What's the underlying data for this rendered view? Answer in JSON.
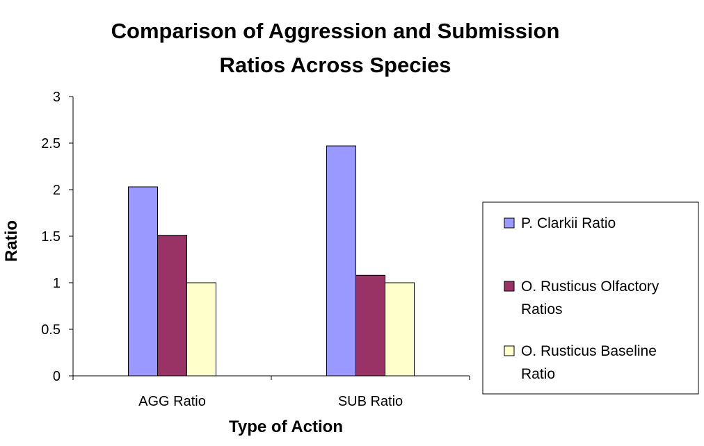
{
  "chart_data": {
    "type": "bar",
    "title_lines": [
      "Comparison of Aggression and Submission",
      "Ratios Across Species"
    ],
    "xlabel": "Type of Action",
    "ylabel": "Ratio",
    "categories": [
      "AGG Ratio",
      "SUB Ratio"
    ],
    "ylim": [
      0,
      3
    ],
    "yticks": [
      0,
      0.5,
      1,
      1.5,
      2,
      2.5,
      3
    ],
    "grid": false,
    "legend_position": "right",
    "series": [
      {
        "name": "P. Clarkii Ratio",
        "legend_lines": [
          "P. Clarkii Ratio"
        ],
        "color": "#9999FF",
        "values": [
          2.03,
          2.47
        ]
      },
      {
        "name": "O. Rusticus Olfactory Ratios",
        "legend_lines": [
          "O. Rusticus Olfactory",
          "Ratios"
        ],
        "color": "#993366",
        "values": [
          1.51,
          1.08
        ]
      },
      {
        "name": "O. Rusticus Baseline Ratio",
        "legend_lines": [
          "O. Rusticus Baseline",
          "Ratio"
        ],
        "color": "#FFFFCC",
        "values": [
          1.0,
          1.0
        ]
      }
    ]
  }
}
